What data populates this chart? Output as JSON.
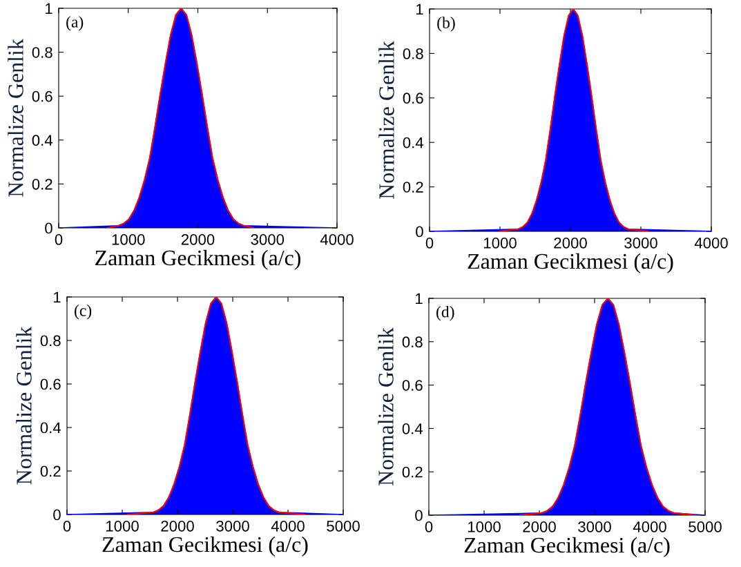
{
  "chart_data": [
    {
      "type": "area",
      "xlabel": "Zaman Gecikmesi (a/c)",
      "ylabel": "Normalize Genlik",
      "annotations": [
        "(a)"
      ],
      "xlim": [
        0,
        4000
      ],
      "xticks": [
        0,
        1000,
        2000,
        3000,
        4000
      ],
      "ylim": [
        0,
        1
      ],
      "yticks": [
        0,
        0.2,
        0.4,
        0.6,
        0.8,
        1
      ],
      "grid": false,
      "series": [
        {
          "color": "#0000ff",
          "x": [
            0,
            860,
            935,
            1010,
            1085,
            1160,
            1235,
            1310,
            1385,
            1460,
            1535,
            1610,
            1685,
            1760,
            1835,
            1910,
            1985,
            2060,
            2135,
            2210,
            2285,
            2360,
            2435,
            2510,
            2585,
            2660,
            4000
          ],
          "values": [
            0,
            0.01,
            0.02,
            0.04,
            0.08,
            0.14,
            0.22,
            0.32,
            0.46,
            0.61,
            0.75,
            0.88,
            0.97,
            1,
            0.97,
            0.88,
            0.75,
            0.61,
            0.46,
            0.32,
            0.22,
            0.14,
            0.08,
            0.04,
            0.02,
            0.01,
            0
          ]
        },
        {
          "type": "line",
          "color": "#ff0000",
          "x": [
            700,
            860,
            935,
            1010,
            1085,
            1160,
            1235,
            1310,
            1385,
            1460,
            1535,
            1610,
            1685,
            1760,
            1835,
            1910,
            1985,
            2060,
            2135,
            2210,
            2285,
            2360,
            2435,
            2510,
            2585,
            2660,
            2800
          ],
          "values": [
            0,
            0.01,
            0.02,
            0.04,
            0.08,
            0.14,
            0.22,
            0.32,
            0.46,
            0.61,
            0.75,
            0.88,
            0.97,
            1,
            0.97,
            0.88,
            0.75,
            0.61,
            0.46,
            0.32,
            0.22,
            0.14,
            0.08,
            0.04,
            0.02,
            0.01,
            0
          ]
        }
      ]
    },
    {
      "type": "area",
      "xlabel": "Zaman Gecikmesi (a/c)",
      "ylabel": "Normalize Genlik",
      "annotations": [
        "(b)"
      ],
      "xlim": [
        0,
        4000
      ],
      "xticks": [
        0,
        1000,
        2000,
        3000,
        4000
      ],
      "ylim": [
        0,
        1
      ],
      "yticks": [
        0,
        0.2,
        0.4,
        0.6,
        0.8,
        1
      ],
      "grid": false,
      "series": [
        {
          "color": "#0000ff",
          "x": [
            0,
            1260,
            1325,
            1390,
            1455,
            1520,
            1585,
            1650,
            1715,
            1780,
            1845,
            1910,
            1975,
            2040,
            2105,
            2170,
            2235,
            2300,
            2365,
            2430,
            2495,
            2560,
            2625,
            2690,
            2755,
            2820,
            4000
          ],
          "values": [
            0,
            0.01,
            0.02,
            0.04,
            0.08,
            0.14,
            0.22,
            0.32,
            0.46,
            0.61,
            0.75,
            0.88,
            0.97,
            1,
            0.97,
            0.88,
            0.75,
            0.61,
            0.46,
            0.32,
            0.22,
            0.14,
            0.08,
            0.04,
            0.02,
            0.01,
            0
          ]
        },
        {
          "type": "line",
          "color": "#ff0000",
          "x": [
            1000,
            1260,
            1325,
            1390,
            1455,
            1520,
            1585,
            1650,
            1715,
            1780,
            1845,
            1910,
            1975,
            2040,
            2105,
            2170,
            2235,
            2300,
            2365,
            2430,
            2495,
            2560,
            2625,
            2690,
            2755,
            2820,
            3100
          ],
          "values": [
            0,
            0.01,
            0.02,
            0.04,
            0.08,
            0.14,
            0.22,
            0.32,
            0.46,
            0.61,
            0.75,
            0.88,
            0.97,
            1,
            0.97,
            0.88,
            0.75,
            0.61,
            0.46,
            0.32,
            0.22,
            0.14,
            0.08,
            0.04,
            0.02,
            0.01,
            0
          ]
        }
      ]
    },
    {
      "type": "area",
      "xlabel": "Zaman Gecikmesi (a/c)",
      "ylabel": "Normalize Genlik",
      "annotations": [
        "(c)"
      ],
      "xlim": [
        0,
        5000
      ],
      "xticks": [
        0,
        1000,
        2000,
        3000,
        4000,
        5000
      ],
      "ylim": [
        0,
        1
      ],
      "yticks": [
        0,
        0.2,
        0.4,
        0.6,
        0.8,
        1
      ],
      "grid": false,
      "series": [
        {
          "color": "#0000ff",
          "x": [
            0,
            1560,
            1655,
            1750,
            1845,
            1940,
            2035,
            2130,
            2225,
            2320,
            2415,
            2510,
            2605,
            2700,
            2795,
            2890,
            2985,
            3080,
            3175,
            3270,
            3365,
            3460,
            3555,
            3650,
            3745,
            3840,
            5000
          ],
          "values": [
            0,
            0.01,
            0.02,
            0.04,
            0.08,
            0.14,
            0.22,
            0.32,
            0.46,
            0.61,
            0.75,
            0.88,
            0.97,
            1,
            0.97,
            0.88,
            0.75,
            0.61,
            0.46,
            0.32,
            0.22,
            0.14,
            0.08,
            0.04,
            0.02,
            0.01,
            0
          ]
        },
        {
          "type": "line",
          "color": "#ff0000",
          "x": [
            1100,
            1560,
            1655,
            1750,
            1845,
            1940,
            2035,
            2130,
            2225,
            2320,
            2415,
            2510,
            2605,
            2700,
            2795,
            2890,
            2985,
            3080,
            3175,
            3270,
            3365,
            3460,
            3555,
            3650,
            3745,
            3840,
            4300
          ],
          "values": [
            0,
            0.01,
            0.02,
            0.04,
            0.08,
            0.14,
            0.22,
            0.32,
            0.46,
            0.61,
            0.75,
            0.88,
            0.97,
            1,
            0.97,
            0.88,
            0.75,
            0.61,
            0.46,
            0.32,
            0.22,
            0.14,
            0.08,
            0.04,
            0.02,
            0.01,
            0
          ]
        }
      ]
    },
    {
      "type": "area",
      "xlabel": "Zaman Gecikmesi (a/c)",
      "ylabel": "Normalize Genlik",
      "annotations": [
        "(d)"
      ],
      "xlim": [
        0,
        5000
      ],
      "xticks": [
        0,
        1000,
        2000,
        3000,
        4000,
        5000
      ],
      "ylim": [
        0,
        1
      ],
      "yticks": [
        0,
        0.2,
        0.4,
        0.6,
        0.8,
        1
      ],
      "grid": false,
      "series": [
        {
          "color": "#0000ff",
          "x": [
            0,
            2040,
            2140,
            2240,
            2340,
            2440,
            2540,
            2640,
            2740,
            2840,
            2940,
            3040,
            3140,
            3240,
            3340,
            3440,
            3540,
            3640,
            3740,
            3840,
            3940,
            4040,
            4140,
            4240,
            4340,
            4440,
            5000
          ],
          "values": [
            0,
            0.01,
            0.02,
            0.04,
            0.08,
            0.14,
            0.22,
            0.32,
            0.46,
            0.61,
            0.75,
            0.88,
            0.97,
            1,
            0.97,
            0.88,
            0.75,
            0.61,
            0.46,
            0.32,
            0.22,
            0.14,
            0.08,
            0.04,
            0.02,
            0.01,
            0
          ]
        },
        {
          "type": "line",
          "color": "#ff0000",
          "x": [
            1650,
            2040,
            2140,
            2240,
            2340,
            2440,
            2540,
            2640,
            2740,
            2840,
            2940,
            3040,
            3140,
            3240,
            3340,
            3440,
            3540,
            3640,
            3740,
            3840,
            3940,
            4040,
            4140,
            4240,
            4340,
            4440,
            4830
          ],
          "values": [
            0,
            0.01,
            0.02,
            0.04,
            0.08,
            0.14,
            0.22,
            0.32,
            0.46,
            0.61,
            0.75,
            0.88,
            0.97,
            1,
            0.97,
            0.88,
            0.75,
            0.61,
            0.46,
            0.32,
            0.22,
            0.14,
            0.08,
            0.04,
            0.02,
            0.01,
            0
          ]
        }
      ]
    }
  ]
}
